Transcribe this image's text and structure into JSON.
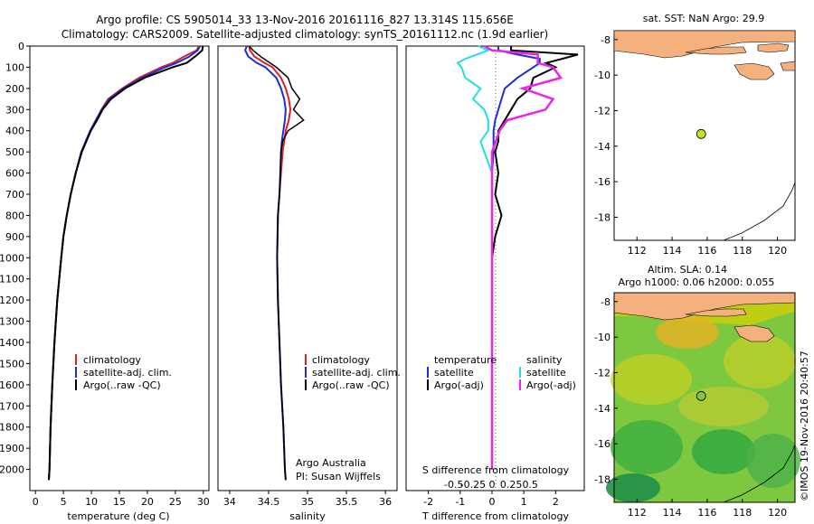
{
  "header": {
    "title_line1": "Argo profile: CS 5905014_33 13-Nov-2016 20161116_827 13.314S 115.656E",
    "title_line2": "Climatology: CARS2009. Satellite-adjusted climatology: synTS_20161112.nc (1.9d earlier)"
  },
  "colors": {
    "climatology": "#e0201e",
    "satellite": "#1a2fd6",
    "argo": "#000000",
    "salinity_satellite": "#20e0e0",
    "salinity_argo": "#ee22ee",
    "land": "#f5b080",
    "argo_marker": "#c8e020"
  },
  "chart_data": [
    {
      "type": "line",
      "id": "temperature",
      "xlabel": "temperature (deg C)",
      "ylim": [
        2100,
        0
      ],
      "xlim": [
        -1,
        31
      ],
      "xticks": [
        "0",
        "5",
        "10",
        "15",
        "20",
        "25",
        "30"
      ],
      "yticks": [
        "0",
        "100",
        "200",
        "300",
        "400",
        "500",
        "600",
        "700",
        "800",
        "900",
        "1000",
        "1100",
        "1200",
        "1300",
        "1400",
        "1500",
        "1600",
        "1700",
        "1800",
        "1900",
        "2000"
      ],
      "legend": [
        "climatology",
        "satellite-adj. clim.",
        "Argo(..raw -QC)"
      ],
      "depth": [
        0,
        20,
        50,
        80,
        100,
        150,
        200,
        250,
        300,
        350,
        400,
        500,
        600,
        700,
        800,
        900,
        1000,
        1200,
        1400,
        1600,
        1800,
        2000,
        2050
      ],
      "series": [
        {
          "name": "climatology",
          "values": [
            29.2,
            28.8,
            26.5,
            24.5,
            22.5,
            18.5,
            15.5,
            13.0,
            11.8,
            10.8,
            9.8,
            8.2,
            7.2,
            6.3,
            5.6,
            5.0,
            4.6,
            3.9,
            3.4,
            3.0,
            2.7,
            2.5,
            2.4
          ]
        },
        {
          "name": "satellite-adj. clim.",
          "values": [
            29.4,
            29.0,
            27.5,
            25.2,
            23.2,
            19.0,
            15.7,
            13.2,
            11.9,
            10.8,
            9.8,
            8.2,
            7.2,
            6.3,
            5.6,
            5.0,
            4.6,
            3.9,
            3.4,
            3.0,
            2.7,
            2.5,
            2.4
          ]
        },
        {
          "name": "Argo(..raw -QC)",
          "values": [
            29.9,
            29.8,
            28.5,
            27.0,
            24.5,
            19.5,
            16.0,
            13.5,
            12.0,
            11.0,
            9.9,
            8.3,
            7.2,
            6.3,
            5.6,
            5.0,
            4.6,
            3.9,
            3.4,
            3.0,
            2.7,
            2.5,
            2.4
          ]
        }
      ]
    },
    {
      "type": "line",
      "id": "salinity",
      "xlabel": "salinity",
      "ylim": [
        2100,
        0
      ],
      "xlim": [
        33.85,
        36.15
      ],
      "xticks": [
        "34",
        "34.5",
        "35",
        "35.5",
        "36"
      ],
      "legend": [
        "climatology",
        "satellite-adj. clim.",
        "Argo(..raw -QC)"
      ],
      "annotation": [
        "Argo Australia",
        "PI: Susan Wijffels"
      ],
      "depth": [
        0,
        20,
        50,
        80,
        100,
        150,
        200,
        250,
        300,
        350,
        400,
        450,
        500,
        600,
        700,
        800,
        1000,
        1200,
        1400,
        1600,
        1800,
        2000,
        2050
      ],
      "series": [
        {
          "name": "climatology",
          "values": [
            34.25,
            34.26,
            34.32,
            34.45,
            34.55,
            34.66,
            34.72,
            34.76,
            34.78,
            34.76,
            34.72,
            34.7,
            34.68,
            34.66,
            34.64,
            34.62,
            34.61,
            34.62,
            34.64,
            34.66,
            34.69,
            34.71,
            34.72
          ]
        },
        {
          "name": "satellite-adj. clim.",
          "values": [
            34.22,
            34.2,
            34.24,
            34.35,
            34.46,
            34.6,
            34.66,
            34.7,
            34.72,
            34.71,
            34.69,
            34.67,
            34.66,
            34.65,
            34.64,
            34.62,
            34.61,
            34.62,
            34.64,
            34.66,
            34.69,
            34.71,
            34.72
          ]
        },
        {
          "name": "Argo(..raw -QC)",
          "values": [
            34.25,
            34.3,
            34.4,
            34.52,
            34.6,
            34.75,
            34.8,
            34.9,
            34.82,
            34.95,
            34.75,
            34.68,
            34.66,
            34.65,
            34.64,
            34.62,
            34.61,
            34.62,
            34.64,
            34.66,
            34.69,
            34.71,
            34.72
          ]
        }
      ]
    },
    {
      "type": "line",
      "id": "difference",
      "xlabel": "T difference from climatology",
      "x2label": "S difference from climatology",
      "ylim": [
        2100,
        0
      ],
      "xlim": [
        -2.7,
        2.9
      ],
      "xticks": [
        "-2",
        "-1",
        "0",
        "1",
        "2"
      ],
      "x2ticks": [
        "-0.5",
        "-0.25",
        "0",
        "0.25",
        "0.5"
      ],
      "legend_temperature": [
        "temperature",
        "satellite",
        "Argo(-adj)"
      ],
      "legend_salinity": [
        "salinity",
        "satellite",
        "Argo(-adj)"
      ],
      "depth": [
        0,
        20,
        40,
        60,
        80,
        100,
        150,
        200,
        250,
        300,
        350,
        400,
        450,
        500,
        600,
        700,
        800,
        900,
        1000,
        1200,
        1500,
        2000
      ],
      "series": [
        {
          "name": "temperature satellite",
          "values": [
            0.2,
            0.2,
            0.8,
            1.5,
            1.5,
            1.3,
            0.8,
            0.4,
            0.3,
            0.2,
            0.1,
            0.05,
            0.05,
            0.05,
            0.0,
            0.0,
            0.0,
            0.0,
            0.0,
            0.0,
            0.0,
            0.0
          ]
        },
        {
          "name": "temperature Argo(-adj)",
          "values": [
            0.6,
            0.6,
            2.7,
            2.2,
            1.7,
            2.0,
            1.3,
            1.2,
            0.8,
            0.6,
            0.4,
            0.2,
            0.2,
            0.1,
            0.2,
            0.1,
            0.3,
            0.1,
            0.0,
            0.0,
            0.0,
            0.0
          ]
        },
        {
          "name": "salinity satellite",
          "values": [
            -0.18,
            -0.05,
            -0.2,
            -0.35,
            -0.45,
            -0.4,
            -0.35,
            -0.15,
            -0.25,
            -0.1,
            -0.05,
            -0.05,
            -0.15,
            -0.1,
            0.0,
            0.0,
            0.0,
            0.0,
            0.0,
            0.0,
            0.0,
            0.0
          ]
        },
        {
          "name": "salinity Argo(-adj)",
          "values": [
            -0.1,
            0.0,
            0.6,
            0.6,
            0.6,
            0.8,
            0.9,
            0.4,
            0.8,
            0.7,
            0.2,
            0.1,
            0.05,
            0.0,
            0.0,
            0.0,
            0.0,
            0.0,
            0.0,
            0.0,
            0.0,
            0.0
          ]
        }
      ]
    },
    {
      "type": "map",
      "id": "sst-map",
      "title": "sat. SST: NaN Argo: 29.9",
      "xticks": [
        "112",
        "114",
        "116",
        "118",
        "120"
      ],
      "yticks": [
        "-8",
        "-10",
        "-12",
        "-14",
        "-16",
        "-18"
      ],
      "xlim": [
        110.7,
        121.0
      ],
      "ylim": [
        -19.3,
        -7.5
      ],
      "argo_position": [
        115.656,
        -13.314
      ]
    },
    {
      "type": "heatmap",
      "id": "sla-map",
      "title1": "Altim. SLA: 0.14",
      "title2": "Argo h1000: 0.06 h2000: 0.055",
      "xticks": [
        "112",
        "114",
        "116",
        "118",
        "120"
      ],
      "yticks": [
        "-8",
        "-10",
        "-12",
        "-14",
        "-16",
        "-18"
      ],
      "xlim": [
        110.7,
        121.0
      ],
      "ylim": [
        -19.3,
        -7.5
      ],
      "argo_position": [
        115.656,
        -13.314
      ],
      "credit": "©IMOS 19-Nov-2016 20:40:57"
    }
  ]
}
